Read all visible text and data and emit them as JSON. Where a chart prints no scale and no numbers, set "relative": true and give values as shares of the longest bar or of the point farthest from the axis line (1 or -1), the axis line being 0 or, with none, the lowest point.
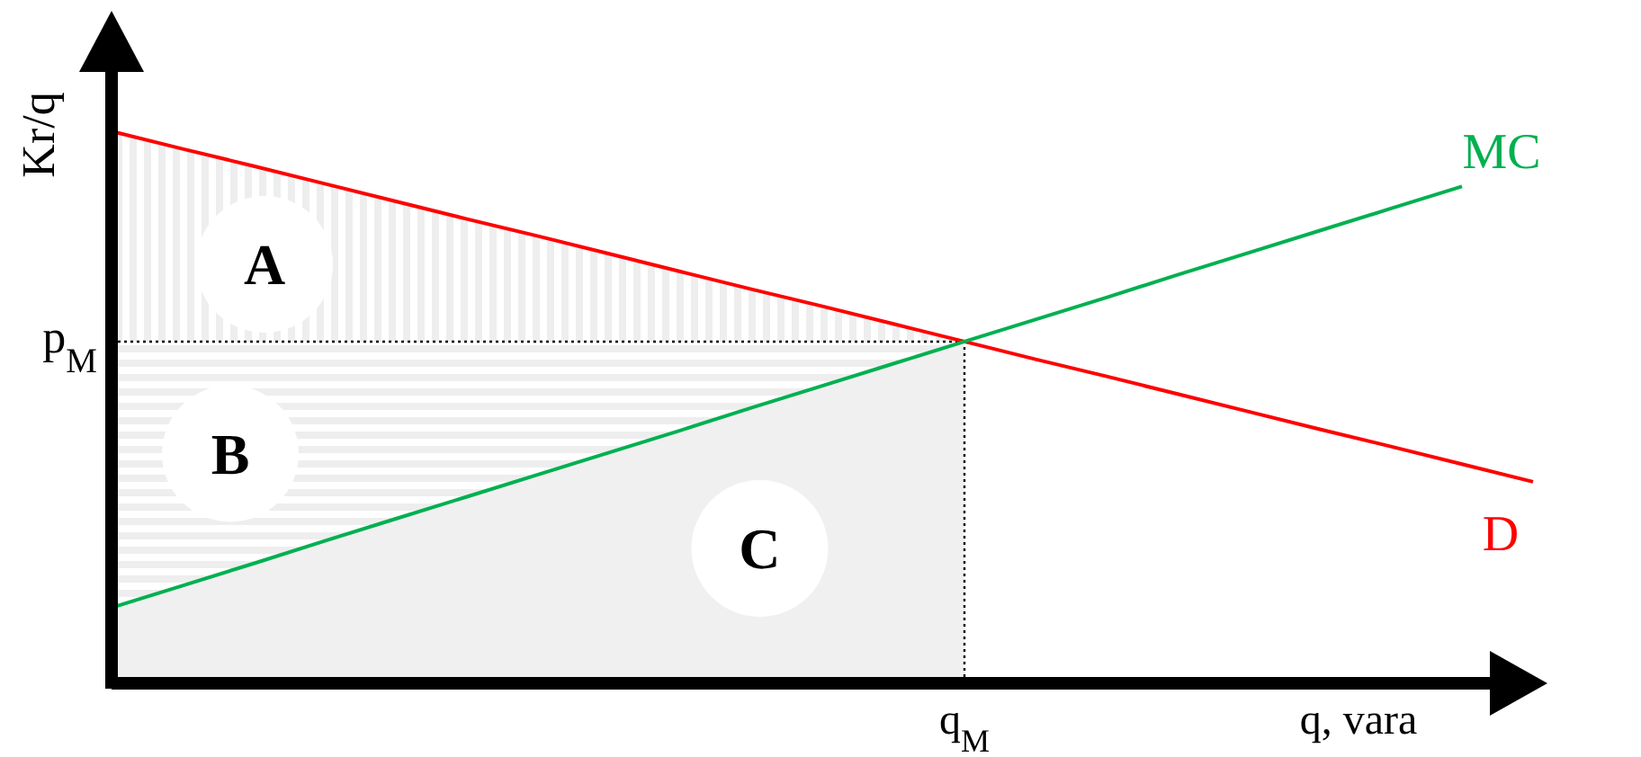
{
  "chart_data": {
    "type": "line",
    "relative": true,
    "xlabel": "q, vara",
    "ylabel": "Kr/q",
    "categories": [
      null,
      null,
      null,
      null,
      null,
      null,
      null,
      null,
      null,
      null,
      null,
      null,
      null,
      null,
      null,
      null,
      null,
      null,
      null,
      null,
      null
    ],
    "series": [
      {
        "name": "D",
        "color": "#ff0000",
        "values": [
          1,
          0.968,
          0.937,
          0.905,
          0.873,
          0.841,
          0.81,
          0.778,
          0.746,
          0.714,
          0.683,
          0.651,
          0.619,
          0.587,
          0.556,
          0.524,
          0.492,
          0.46,
          0.429,
          0.397,
          0.365
        ]
      },
      {
        "name": "MC",
        "color": "#00b050",
        "values": [
          0.137,
          0.177,
          0.217,
          0.258,
          0.298,
          0.338,
          0.378,
          0.418,
          0.458,
          0.499,
          0.539,
          0.579,
          0.619,
          0.659,
          0.699,
          0.74,
          0.78,
          0.82,
          0.86,
          0.9,
          null
        ]
      }
    ],
    "ref_lines": [
      {
        "axis": "y",
        "value": 0.619,
        "label": "p$_{M}$",
        "line_style": "dotted",
        "color": "#000000"
      }
    ],
    "annotations": [
      "A",
      "B",
      "C",
      "q$_{M}$"
    ]
  }
}
